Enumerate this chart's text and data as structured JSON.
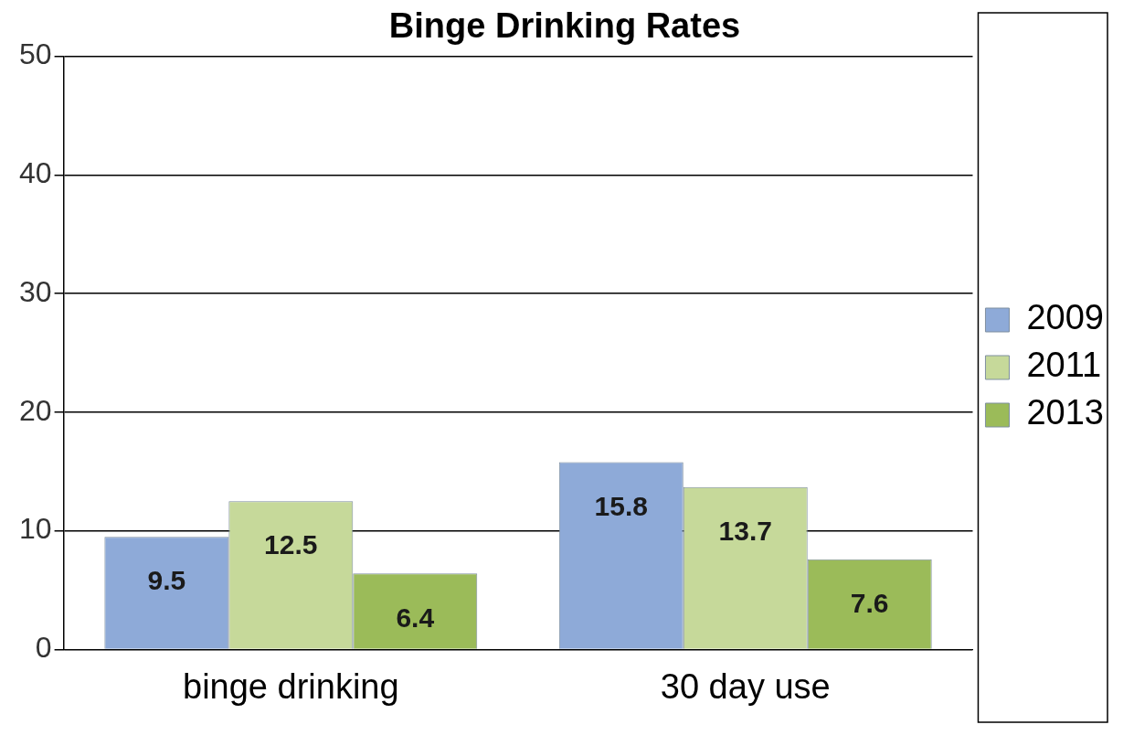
{
  "chart_data": {
    "type": "bar",
    "title": "Binge Drinking Rates",
    "categories": [
      "binge drinking",
      "30 day use"
    ],
    "series": [
      {
        "name": "2009",
        "color": "#8eaad8",
        "values": [
          9.5,
          15.8
        ]
      },
      {
        "name": "2011",
        "color": "#c6d99a",
        "values": [
          12.5,
          13.7
        ]
      },
      {
        "name": "2013",
        "color": "#9bbb59",
        "values": [
          6.4,
          7.6
        ]
      }
    ],
    "ylim": [
      0,
      50
    ],
    "yticks": [
      0,
      10,
      20,
      30,
      40,
      50
    ],
    "grid": "y",
    "legend": "right",
    "data_labels": true
  }
}
